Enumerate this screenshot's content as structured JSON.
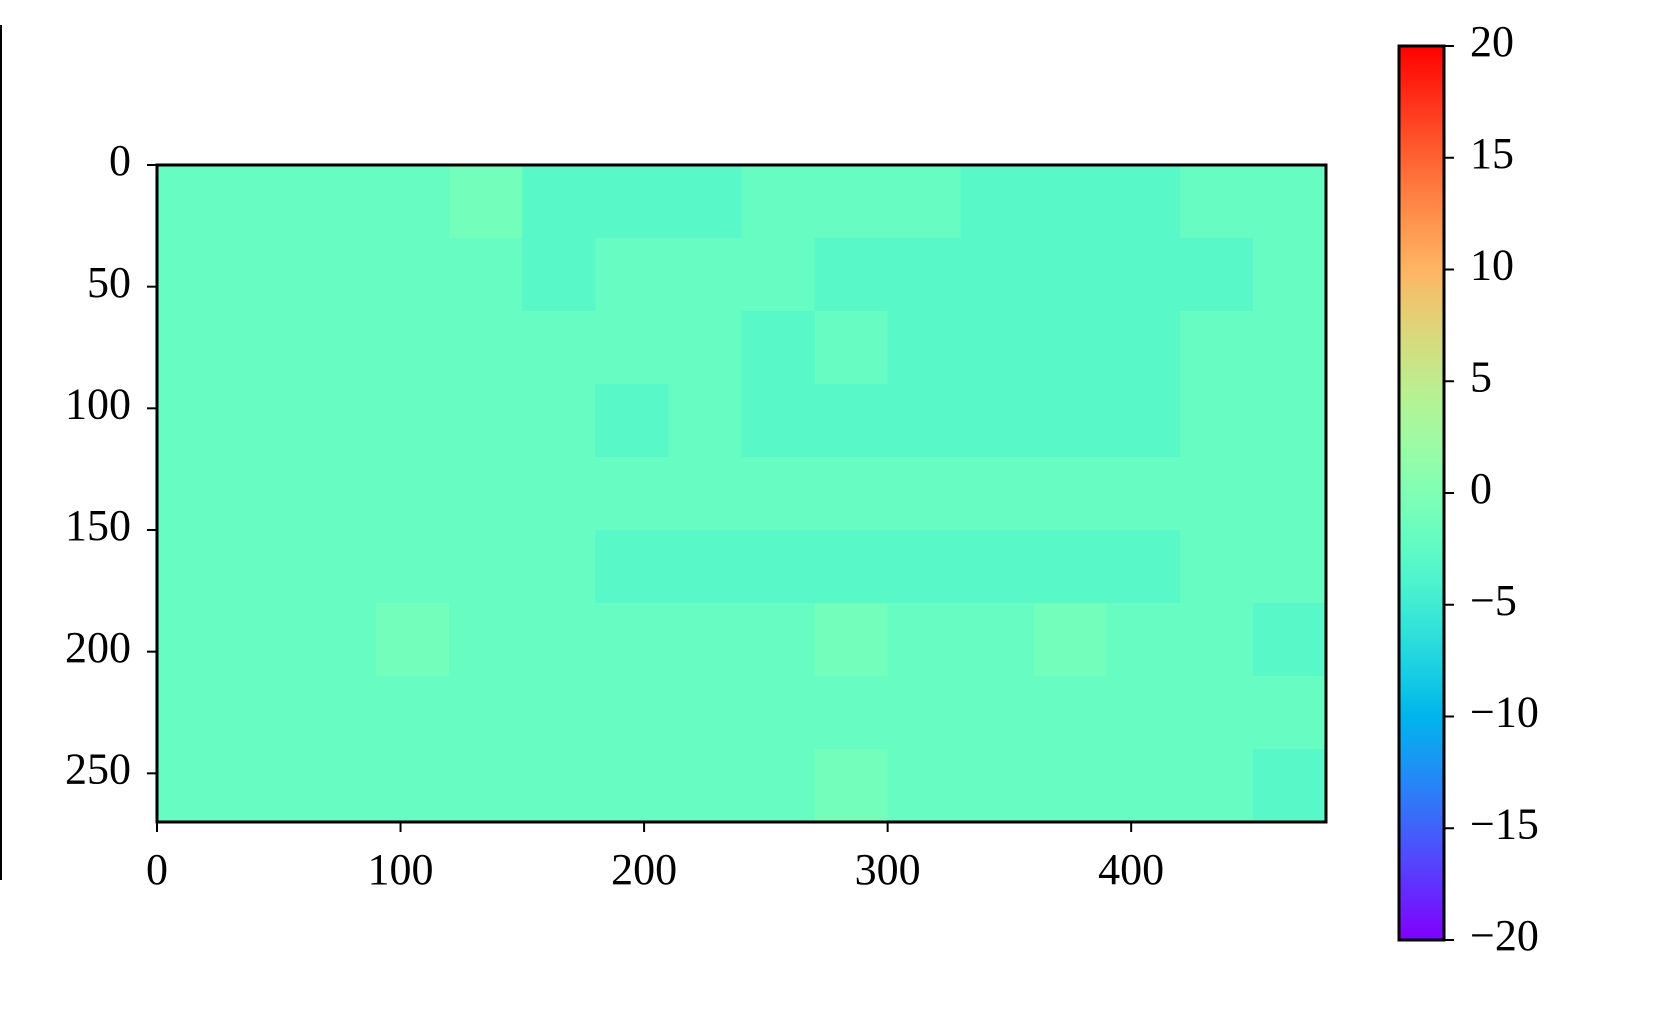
{
  "chart_data": {
    "type": "heatmap",
    "colormap": "rainbow",
    "xlim": [
      0,
      480
    ],
    "ylim": [
      270,
      0
    ],
    "xticks": [
      0,
      100,
      200,
      300,
      400
    ],
    "yticks": [
      0,
      50,
      100,
      150,
      200,
      250
    ],
    "z": [
      [
        -2,
        -2,
        -2,
        -2,
        -1,
        -3,
        -3,
        -3,
        -2,
        -2,
        -2,
        -3,
        -3,
        -3,
        -2,
        -2
      ],
      [
        -2,
        -2,
        -2,
        -2,
        -2,
        -3,
        -2,
        -2,
        -2,
        -3,
        -3,
        -3,
        -3,
        -3,
        -3,
        -2
      ],
      [
        -2,
        -2,
        -2,
        -2,
        -2,
        -2,
        -2,
        -2,
        -3,
        -2,
        -3,
        -3,
        -3,
        -3,
        -2,
        -2
      ],
      [
        -2,
        -2,
        -2,
        -2,
        -2,
        -2,
        -3,
        -2,
        -3,
        -3,
        -3,
        -3,
        -3,
        -3,
        -2,
        -2
      ],
      [
        -2,
        -2,
        -2,
        -2,
        -2,
        -2,
        -2,
        -2,
        -2,
        -2,
        -2,
        -2,
        -2,
        -2,
        -2,
        -2
      ],
      [
        -2,
        -2,
        -2,
        -2,
        -2,
        -2,
        -3,
        -3,
        -3,
        -3,
        -3,
        -3,
        -3,
        -3,
        -2,
        -2
      ],
      [
        -2,
        -2,
        -2,
        -1,
        -2,
        -2,
        -2,
        -2,
        -2,
        -1,
        -2,
        -2,
        -1,
        -2,
        -2,
        -3
      ],
      [
        -2,
        -2,
        -2,
        -2,
        -2,
        -2,
        -2,
        -2,
        -2,
        -2,
        -2,
        -2,
        -2,
        -2,
        -2,
        -2
      ],
      [
        -2,
        -2,
        -2,
        -2,
        -2,
        -2,
        -2,
        -2,
        -2,
        -1,
        -2,
        -2,
        -2,
        -2,
        -2,
        -3
      ]
    ],
    "clim": [
      -20,
      20
    ],
    "cticks": [
      {
        "value": -20,
        "label": "−20"
      },
      {
        "value": -15,
        "label": "−15"
      },
      {
        "value": -10,
        "label": "−10"
      },
      {
        "value": -5,
        "label": "−5"
      },
      0,
      5,
      10,
      15,
      20
    ]
  }
}
